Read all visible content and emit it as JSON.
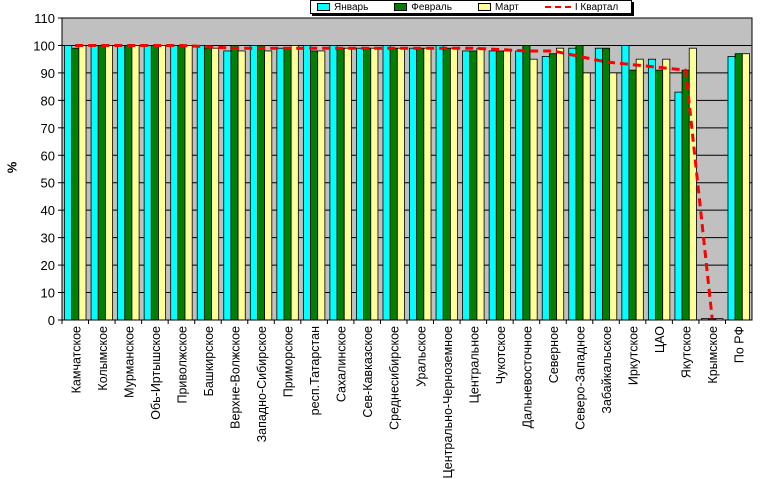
{
  "chart_data": {
    "type": "bar",
    "ylabel": "%",
    "ylim": [
      0,
      110
    ],
    "yticks": [
      0,
      10,
      20,
      30,
      40,
      50,
      60,
      70,
      80,
      90,
      100,
      110
    ],
    "grid": true,
    "legend_position": "top",
    "categories": [
      "Камчатское",
      "Колымское",
      "Мурманское",
      "Обь-Иртышское",
      "Приволжское",
      "Башкирское",
      "Верхне-Волжское",
      "Западно-Сибирское",
      "Приморское",
      "респ.Татарстан",
      "Сахалинское",
      "Сев-Кавказское",
      "Среднесибирское",
      "Уральское",
      "Центрально-Черноземное",
      "Центральное",
      "Чукотское",
      "Дальневосточное",
      "Северное",
      "Северо-Западное",
      "Забайкальское",
      "Иркутское",
      "ЦАО",
      "Якутское",
      "Крымское",
      "По РФ"
    ],
    "series": [
      {
        "name": "Январь",
        "color": "#00ffff",
        "values": [
          100,
          100,
          100,
          100,
          100,
          100,
          98,
          100,
          99,
          100,
          100,
          99,
          100,
          99,
          100,
          98,
          98,
          98,
          96,
          99,
          99,
          100,
          95,
          83,
          0.5,
          96
        ]
      },
      {
        "name": "Февраль",
        "color": "#007f00",
        "values": [
          99,
          100,
          100,
          100,
          100,
          99,
          100,
          100,
          99,
          98,
          99,
          99,
          99,
          99,
          99,
          98,
          98,
          100,
          97,
          100,
          99,
          91,
          91,
          91,
          0.5,
          97
        ]
      },
      {
        "name": "Март",
        "color": "#ffff99",
        "values": [
          100,
          100,
          100,
          100,
          100,
          99,
          98,
          98,
          100,
          98,
          99,
          99,
          99,
          99,
          99,
          99,
          98,
          95,
          99,
          90,
          90,
          95,
          95,
          99,
          0.5,
          97
        ]
      },
      {
        "name": "I Квартал",
        "color": "#ff0000",
        "type": "line",
        "values": [
          100,
          100,
          100,
          100,
          100,
          99.5,
          99,
          99,
          99,
          99,
          99,
          99,
          99,
          99,
          99,
          99,
          98.5,
          98,
          98,
          96,
          94,
          93,
          92,
          91,
          0.5,
          null
        ]
      }
    ]
  },
  "legend": {
    "items": [
      {
        "label": "Январь",
        "color": "#00ffff"
      },
      {
        "label": "Февраль",
        "color": "#007f00"
      },
      {
        "label": "Март",
        "color": "#ffff99"
      },
      {
        "label": "I Квартал",
        "color": "#ff0000"
      }
    ]
  }
}
